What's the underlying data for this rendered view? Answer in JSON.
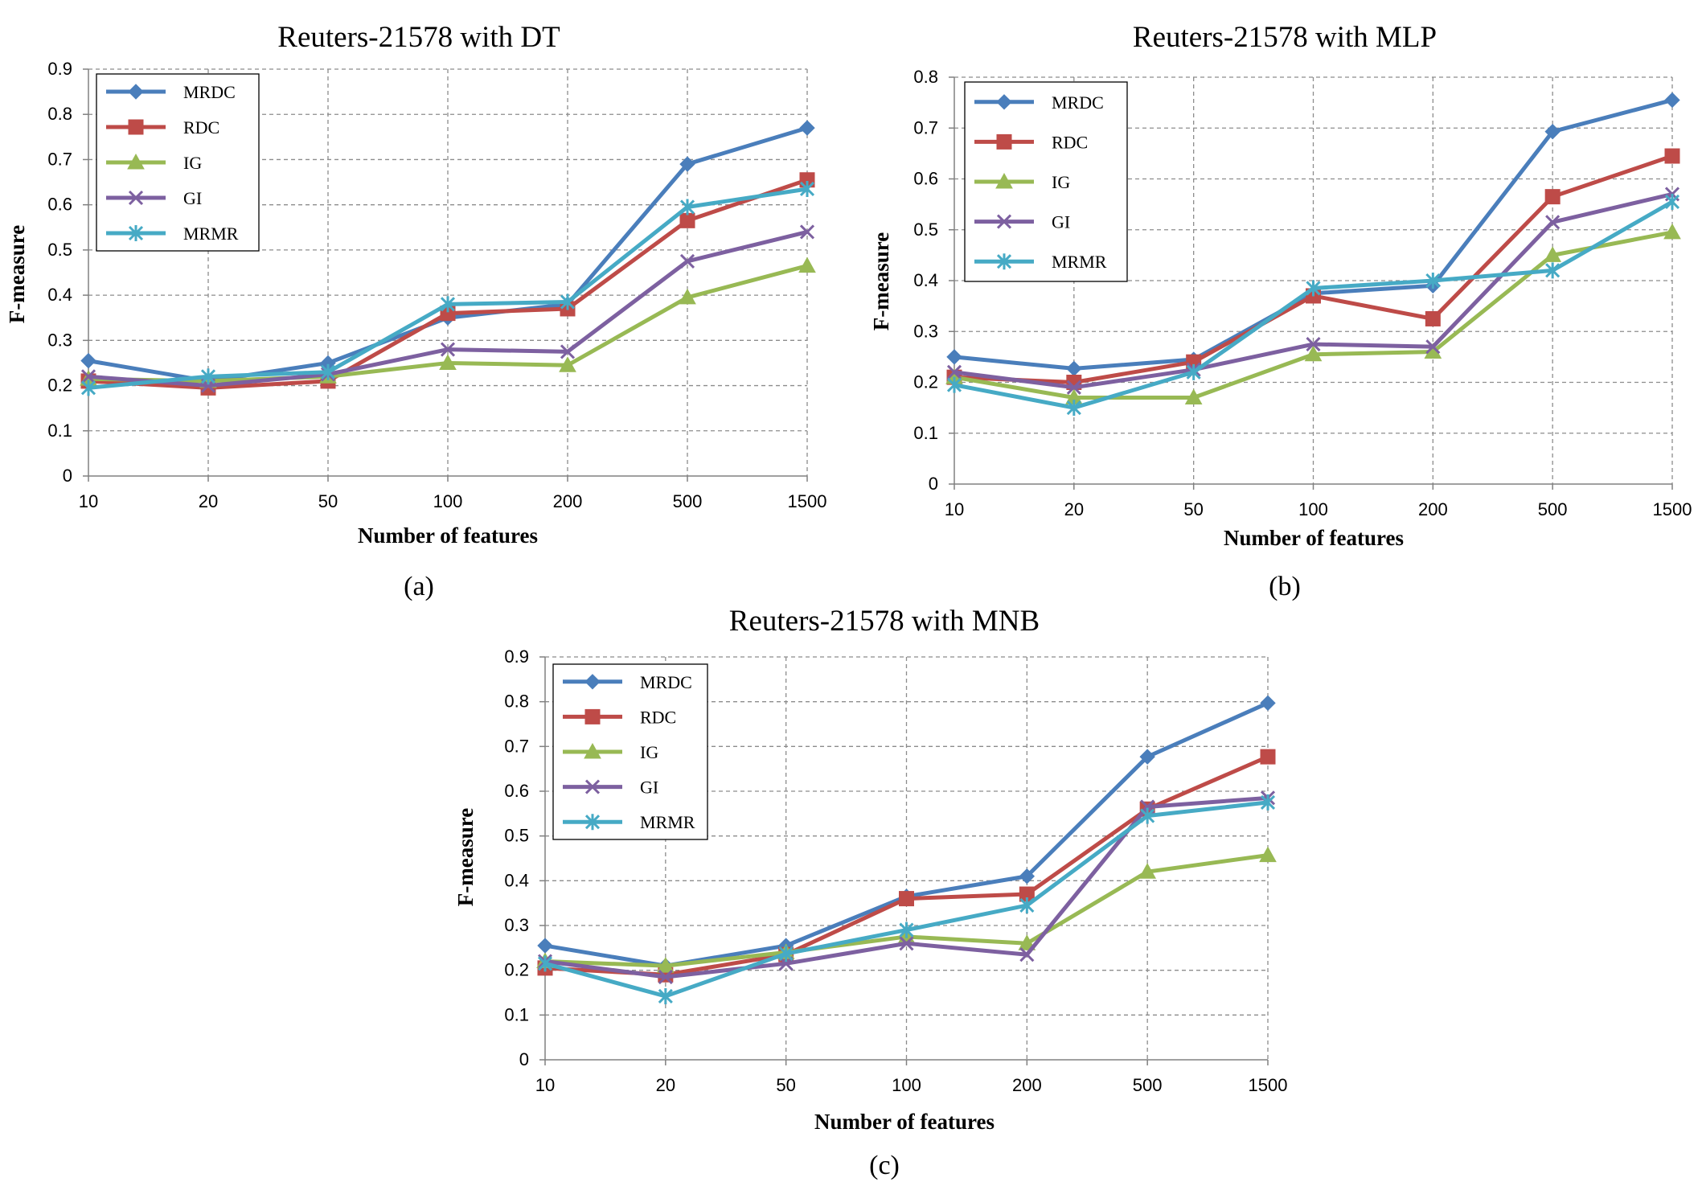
{
  "colors": {
    "MRDC": "#4a7ebb",
    "RDC": "#be4b48",
    "IG": "#98b954",
    "GI": "#7d60a0",
    "MRMR": "#46aac5"
  },
  "chart_data": [
    {
      "type": "line",
      "title": "Reuters-21578 with DT",
      "xlabel": "Number of features",
      "ylabel": "F-measure",
      "caption": "(a)",
      "categories": [
        "10",
        "20",
        "50",
        "100",
        "200",
        "500",
        "1500"
      ],
      "yticks": [
        "0",
        "0.1",
        "0.2",
        "0.3",
        "0.4",
        "0.5",
        "0.6",
        "0.7",
        "0.8",
        "0.9"
      ],
      "ylim": [
        0,
        0.9
      ],
      "grid": true,
      "legend": "top-left",
      "series": [
        {
          "name": "MRDC",
          "marker": "diamond",
          "values": [
            0.255,
            0.21,
            0.25,
            0.35,
            0.38,
            0.69,
            0.77
          ]
        },
        {
          "name": "RDC",
          "marker": "square",
          "values": [
            0.21,
            0.195,
            0.21,
            0.36,
            0.37,
            0.565,
            0.655
          ]
        },
        {
          "name": "IG",
          "marker": "triangle",
          "values": [
            0.215,
            0.21,
            0.22,
            0.25,
            0.245,
            0.395,
            0.465
          ]
        },
        {
          "name": "GI",
          "marker": "x",
          "values": [
            0.22,
            0.2,
            0.225,
            0.28,
            0.275,
            0.475,
            0.54
          ]
        },
        {
          "name": "MRMR",
          "marker": "asterisk",
          "values": [
            0.195,
            0.22,
            0.23,
            0.38,
            0.385,
            0.595,
            0.635
          ]
        }
      ]
    },
    {
      "type": "line",
      "title": "Reuters-21578 with MLP",
      "xlabel": "Number of features",
      "ylabel": "F-measure",
      "caption": "(b)",
      "categories": [
        "10",
        "20",
        "50",
        "100",
        "200",
        "500",
        "1500"
      ],
      "yticks": [
        "0",
        "0.1",
        "0.2",
        "0.3",
        "0.4",
        "0.5",
        "0.6",
        "0.7",
        "0.8"
      ],
      "ylim": [
        0,
        0.8
      ],
      "grid": true,
      "legend": "top-left",
      "series": [
        {
          "name": "MRDC",
          "marker": "diamond",
          "values": [
            0.25,
            0.227,
            0.245,
            0.375,
            0.39,
            0.693,
            0.755
          ]
        },
        {
          "name": "RDC",
          "marker": "square",
          "values": [
            0.21,
            0.2,
            0.24,
            0.37,
            0.325,
            0.565,
            0.645
          ]
        },
        {
          "name": "IG",
          "marker": "triangle",
          "values": [
            0.21,
            0.17,
            0.17,
            0.255,
            0.26,
            0.45,
            0.495
          ]
        },
        {
          "name": "GI",
          "marker": "x",
          "values": [
            0.22,
            0.19,
            0.225,
            0.275,
            0.27,
            0.515,
            0.57
          ]
        },
        {
          "name": "MRMR",
          "marker": "asterisk",
          "values": [
            0.195,
            0.15,
            0.22,
            0.385,
            0.4,
            0.42,
            0.555
          ]
        }
      ]
    },
    {
      "type": "line",
      "title": "Reuters-21578 with MNB",
      "xlabel": "Number of features",
      "ylabel": "F-measure",
      "caption": "(c)",
      "categories": [
        "10",
        "20",
        "50",
        "100",
        "200",
        "500",
        "1500"
      ],
      "yticks": [
        "0",
        "0.1",
        "0.2",
        "0.3",
        "0.4",
        "0.5",
        "0.6",
        "0.7",
        "0.8",
        "0.9"
      ],
      "ylim": [
        0,
        0.9
      ],
      "grid": true,
      "legend": "top-left",
      "series": [
        {
          "name": "MRDC",
          "marker": "diamond",
          "values": [
            0.255,
            0.21,
            0.255,
            0.365,
            0.41,
            0.677,
            0.797
          ]
        },
        {
          "name": "RDC",
          "marker": "square",
          "values": [
            0.205,
            0.19,
            0.235,
            0.36,
            0.37,
            0.56,
            0.677
          ]
        },
        {
          "name": "IG",
          "marker": "triangle",
          "values": [
            0.22,
            0.21,
            0.24,
            0.275,
            0.26,
            0.42,
            0.457
          ]
        },
        {
          "name": "GI",
          "marker": "x",
          "values": [
            0.22,
            0.185,
            0.215,
            0.26,
            0.235,
            0.565,
            0.585
          ]
        },
        {
          "name": "MRMR",
          "marker": "asterisk",
          "values": [
            0.215,
            0.142,
            0.237,
            0.29,
            0.345,
            0.545,
            0.575
          ]
        }
      ]
    }
  ]
}
